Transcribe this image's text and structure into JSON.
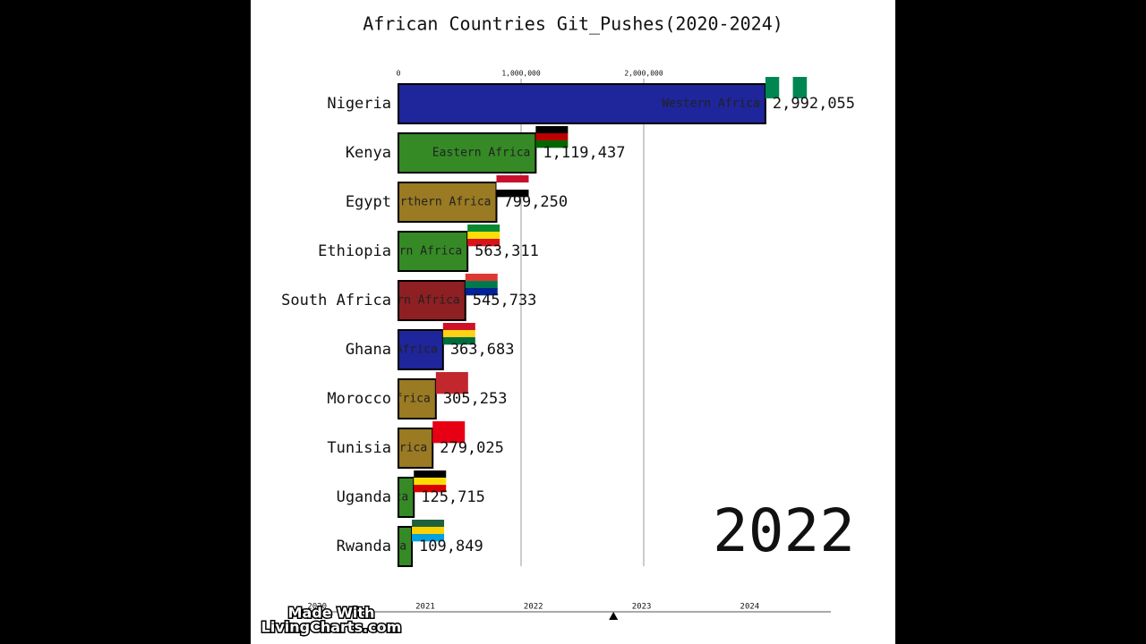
{
  "chart_data": {
    "type": "bar",
    "orientation": "horizontal",
    "title": "African Countries Git_Pushes(2020-2024)",
    "categories": [
      "Nigeria",
      "Kenya",
      "Egypt",
      "Ethiopia",
      "South Africa",
      "Ghana",
      "Morocco",
      "Tunisia",
      "Uganda",
      "Rwanda"
    ],
    "regions": [
      "Western Africa",
      "Eastern Africa",
      "Northern Africa",
      "Eastern Africa",
      "Southern Africa",
      "Western Africa",
      "Northern Africa",
      "Northern Africa",
      "Eastern Africa",
      "Eastern Africa"
    ],
    "colors": [
      "#1f259a",
      "#358a26",
      "#9a7a22",
      "#358a26",
      "#8e1f22",
      "#1f259a",
      "#9a7a22",
      "#9a7a22",
      "#358a26",
      "#358a26"
    ],
    "values": [
      2992055,
      1119437,
      799250,
      563311,
      545733,
      363683,
      305253,
      279025,
      125715,
      109849
    ],
    "value_labels": [
      "2,992,055",
      "1,119,437",
      "799,250",
      "563,311",
      "545,733",
      "363,683",
      "305,253",
      "279,025",
      "125,715",
      "109,849"
    ],
    "xlim": [
      0,
      3000000
    ],
    "xticks": [
      0,
      {
        "value": 1000000,
        "label": "1,000,000"
      },
      {
        "value": 2000000,
        "label": "2,000,000"
      }
    ],
    "grid": true,
    "year_label": "2022",
    "timeline_ticks": [
      2020,
      2021,
      2022,
      2023,
      2024
    ],
    "timeline_lim": [
      2019.8,
      2024.75
    ],
    "timeline_position": 2022.74,
    "watermark": [
      "Made With",
      "LivingCharts.com"
    ]
  }
}
